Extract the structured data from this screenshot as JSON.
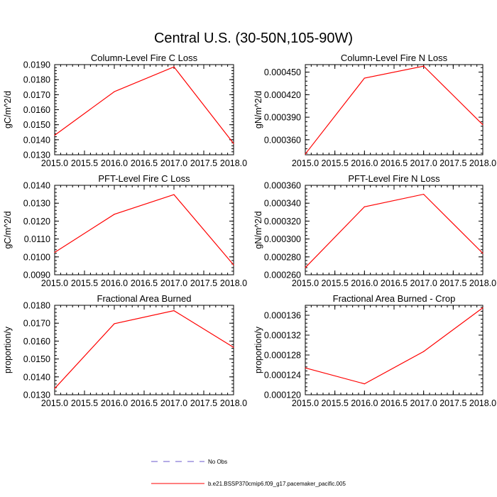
{
  "title": "Central U.S. (30-50N,105-90W)",
  "colors": {
    "model": "#ff0000",
    "obs": "#6a5acd",
    "axis": "#000000"
  },
  "legend": [
    {
      "label": "No Obs",
      "style": "dashed",
      "color": "#6a5acd"
    },
    {
      "label": "b.e21.BSSP370cmip6.f09_g17.pacemaker_pacific.005",
      "style": "solid",
      "color": "#ff0000"
    }
  ],
  "chart_data": [
    {
      "type": "line",
      "title": "Column-Level Fire C Loss",
      "xlabel": "",
      "ylabel": "gC/m^2/d",
      "xlim": [
        2015.0,
        2018.0
      ],
      "ylim": [
        0.013,
        0.019
      ],
      "xticks": [
        "2015.0",
        "2015.5",
        "2016.0",
        "2016.5",
        "2017.0",
        "2017.5",
        "2018.0"
      ],
      "yticks": [
        "0.0130",
        "0.0140",
        "0.0150",
        "0.0160",
        "0.0170",
        "0.0180",
        "0.0190"
      ],
      "series": [
        {
          "x": [
            2015,
            2016,
            2017,
            2018
          ],
          "y": [
            0.0143,
            0.0172,
            0.01885,
            0.01375
          ]
        }
      ]
    },
    {
      "type": "line",
      "title": "Column-Level Fire N Loss",
      "xlabel": "",
      "ylabel": "gN/m^2/d",
      "xlim": [
        2015.0,
        2018.0
      ],
      "ylim": [
        0.00034,
        0.00046
      ],
      "xticks": [
        "2015.0",
        "2015.5",
        "2016.0",
        "2016.5",
        "2017.0",
        "2017.5",
        "2018.0"
      ],
      "yticks": [
        "0.000360",
        "0.000390",
        "0.000420",
        "0.000450"
      ],
      "series": [
        {
          "x": [
            2015,
            2016,
            2017,
            2018
          ],
          "y": [
            0.000341,
            0.000442,
            0.000458,
            0.00038
          ]
        }
      ]
    },
    {
      "type": "line",
      "title": "PFT-Level Fire C Loss",
      "xlabel": "",
      "ylabel": "gC/m^2/d",
      "xlim": [
        2015.0,
        2018.0
      ],
      "ylim": [
        0.009,
        0.014
      ],
      "xticks": [
        "2015.0",
        "2015.5",
        "2016.0",
        "2016.5",
        "2017.0",
        "2017.5",
        "2018.0"
      ],
      "yticks": [
        "0.0090",
        "0.0100",
        "0.0110",
        "0.0120",
        "0.0130",
        "0.0140"
      ],
      "series": [
        {
          "x": [
            2015,
            2016,
            2017,
            2018
          ],
          "y": [
            0.01025,
            0.01238,
            0.01348,
            0.00955
          ]
        }
      ]
    },
    {
      "type": "line",
      "title": "PFT-Level Fire N Loss",
      "xlabel": "",
      "ylabel": "gN/m^2/d",
      "xlim": [
        2015.0,
        2018.0
      ],
      "ylim": [
        0.00026,
        0.00036
      ],
      "xticks": [
        "2015.0",
        "2015.5",
        "2016.0",
        "2016.5",
        "2017.0",
        "2017.5",
        "2018.0"
      ],
      "yticks": [
        "0.000260",
        "0.000280",
        "0.000300",
        "0.000320",
        "0.000340",
        "0.000360"
      ],
      "series": [
        {
          "x": [
            2015,
            2016,
            2017,
            2018
          ],
          "y": [
            0.000268,
            0.000336,
            0.00035,
            0.000284
          ]
        }
      ]
    },
    {
      "type": "line",
      "title": "Fractional Area Burned",
      "xlabel": "",
      "ylabel": "proportion/y",
      "xlim": [
        2015.0,
        2018.0
      ],
      "ylim": [
        0.013,
        0.018
      ],
      "xticks": [
        "2015.0",
        "2015.5",
        "2016.0",
        "2016.5",
        "2017.0",
        "2017.5",
        "2018.0"
      ],
      "yticks": [
        "0.0130",
        "0.0140",
        "0.0150",
        "0.0160",
        "0.0170",
        "0.0180"
      ],
      "series": [
        {
          "x": [
            2015,
            2016,
            2017,
            2018
          ],
          "y": [
            0.01335,
            0.01697,
            0.0177,
            0.01565
          ]
        }
      ]
    },
    {
      "type": "line",
      "title": "Fractional Area Burned - Crop",
      "xlabel": "",
      "ylabel": "proportion/y",
      "xlim": [
        2015.0,
        2018.0
      ],
      "ylim": [
        0.00012,
        0.000138
      ],
      "xticks": [
        "2015.0",
        "2015.5",
        "2016.0",
        "2016.5",
        "2017.0",
        "2017.5",
        "2018.0"
      ],
      "yticks": [
        "0.000120",
        "0.000124",
        "0.000128",
        "0.000132",
        "0.000136"
      ],
      "series": [
        {
          "x": [
            2015,
            2016,
            2017,
            2018
          ],
          "y": [
            0.0001254,
            0.0001222,
            0.0001287,
            0.0001375
          ]
        }
      ]
    }
  ]
}
